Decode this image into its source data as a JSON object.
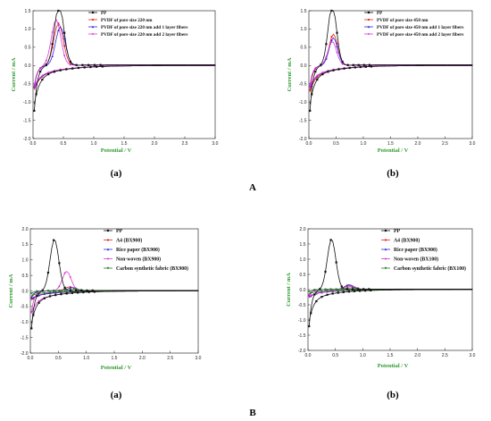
{
  "group_labels": [
    "A",
    "B"
  ],
  "colors": {
    "PP": "#111111",
    "series2": "#e8231f",
    "series3": "#2a2ae0",
    "series4": "#d63ad6",
    "series5": "#1f7a1f",
    "axis_title": "#2e9a2e"
  },
  "chart_data": [
    {
      "type": "line",
      "panel_label": "(a)",
      "group": "A",
      "xlabel": "Potential / V",
      "ylabel": "Current / mA",
      "xlim": [
        0,
        3.0
      ],
      "ylim": [
        -2.0,
        1.5
      ],
      "xticks": [
        "0.0",
        "0.5",
        "1.0",
        "1.5",
        "2.0",
        "2.5",
        "3.0"
      ],
      "yticks": [
        "-2.0",
        "-1.5",
        "-1.0",
        "-0.5",
        "0.0",
        "0.5",
        "1.0",
        "1.5"
      ],
      "legend_position": "top-right",
      "series": [
        {
          "name": "PP",
          "color_key": "PP",
          "peak": 1.65,
          "peak_x": 0.43,
          "start": -1.85
        },
        {
          "name": "PVDF of pore size 220 nm",
          "color_key": "series2",
          "peak": 1.15,
          "peak_x": 0.42,
          "start": -0.9
        },
        {
          "name": "PVDF of pore size 220 nm add 1 layer fibers",
          "color_key": "series3",
          "peak": 1.05,
          "peak_x": 0.45,
          "start": -0.85
        },
        {
          "name": "PVDF of pore size 220 nm add 2 layer fibers",
          "color_key": "series4",
          "peak": 1.25,
          "peak_x": 0.38,
          "start": -0.8
        }
      ]
    },
    {
      "type": "line",
      "panel_label": "(b)",
      "group": "A",
      "xlabel": "Potential / V",
      "ylabel": "Current / mA",
      "xlim": [
        0,
        3.0
      ],
      "ylim": [
        -2.0,
        1.5
      ],
      "xticks": [
        "0.0",
        "0.5",
        "1.0",
        "1.5",
        "2.0",
        "2.5",
        "3.0"
      ],
      "yticks": [
        "-2.0",
        "-1.5",
        "-1.0",
        "-0.5",
        "0.0",
        "0.5",
        "1.0",
        "1.5"
      ],
      "legend_position": "top-right",
      "series": [
        {
          "name": "PP",
          "color_key": "PP",
          "peak": 1.65,
          "peak_x": 0.43,
          "start": -1.85
        },
        {
          "name": "PVDF of pore size 450 nm",
          "color_key": "series2",
          "peak": 0.85,
          "peak_x": 0.45,
          "start": -1.0
        },
        {
          "name": "PVDF of pore size 450 nm add 1 layer fibers",
          "color_key": "series3",
          "peak": 0.75,
          "peak_x": 0.45,
          "start": -0.85
        },
        {
          "name": "PVDF of pore size 450 nm add 2 layer fibers",
          "color_key": "series4",
          "peak": 0.65,
          "peak_x": 0.43,
          "start": -0.8
        }
      ]
    },
    {
      "type": "line",
      "panel_label": "(a)",
      "group": "B",
      "xlabel": "Potential / V",
      "ylabel": "Current / mA",
      "xlim": [
        0,
        3.0
      ],
      "ylim": [
        -2.0,
        2.0
      ],
      "xticks": [
        "0.0",
        "0.5",
        "1.0",
        "1.5",
        "2.0",
        "2.5",
        "3.0"
      ],
      "yticks": [
        "-2.0",
        "-1.5",
        "-1.0",
        "-0.5",
        "0.0",
        "0.5",
        "1.0",
        "1.5",
        "2.0"
      ],
      "legend_position": "top-right",
      "series": [
        {
          "name": "PP",
          "color_key": "PP",
          "peak": 1.65,
          "peak_x": 0.43,
          "start": -1.8
        },
        {
          "name": "A4 (BX900)",
          "color_key": "series2",
          "peak": 0.12,
          "peak_x": 0.7,
          "start": -0.35
        },
        {
          "name": "Rice paper (BX900)",
          "color_key": "series3",
          "peak": 0.1,
          "peak_x": 0.75,
          "start": -0.3
        },
        {
          "name": "Non-woven (BX900)",
          "color_key": "series4",
          "peak": 0.62,
          "peak_x": 0.65,
          "start": -1.0
        },
        {
          "name": "Carbon synthetic fabric (BX900)",
          "color_key": "series5",
          "peak": 0.05,
          "peak_x": 0.8,
          "start": -0.12
        }
      ]
    },
    {
      "type": "line",
      "panel_label": "(b)",
      "group": "B",
      "xlabel": "Potential / V",
      "ylabel": "Current / mA",
      "xlim": [
        0,
        3.0
      ],
      "ylim": [
        -2.0,
        2.0
      ],
      "xticks": [
        "0.0",
        "0.5",
        "1.0",
        "1.5",
        "2.0",
        "2.5",
        "3.0"
      ],
      "yticks": [
        "-2.0",
        "-1.5",
        "-1.0",
        "-0.5",
        "0.0",
        "0.5",
        "1.0",
        "1.5",
        "2.0"
      ],
      "legend_position": "top-right",
      "series": [
        {
          "name": "PP",
          "color_key": "PP",
          "peak": 1.65,
          "peak_x": 0.43,
          "start": -1.8
        },
        {
          "name": "A4 (BX900)",
          "color_key": "series2",
          "peak": 0.12,
          "peak_x": 0.75,
          "start": -0.3
        },
        {
          "name": "Rice paper (BX900)",
          "color_key": "series3",
          "peak": 0.15,
          "peak_x": 0.75,
          "start": -0.28
        },
        {
          "name": "Non-woven (BX100)",
          "color_key": "series4",
          "peak": 0.1,
          "peak_x": 0.8,
          "start": -0.25
        },
        {
          "name": "Carbon synthetic fabric (BX100)",
          "color_key": "series5",
          "peak": 0.05,
          "peak_x": 0.8,
          "start": -0.1
        }
      ]
    }
  ]
}
